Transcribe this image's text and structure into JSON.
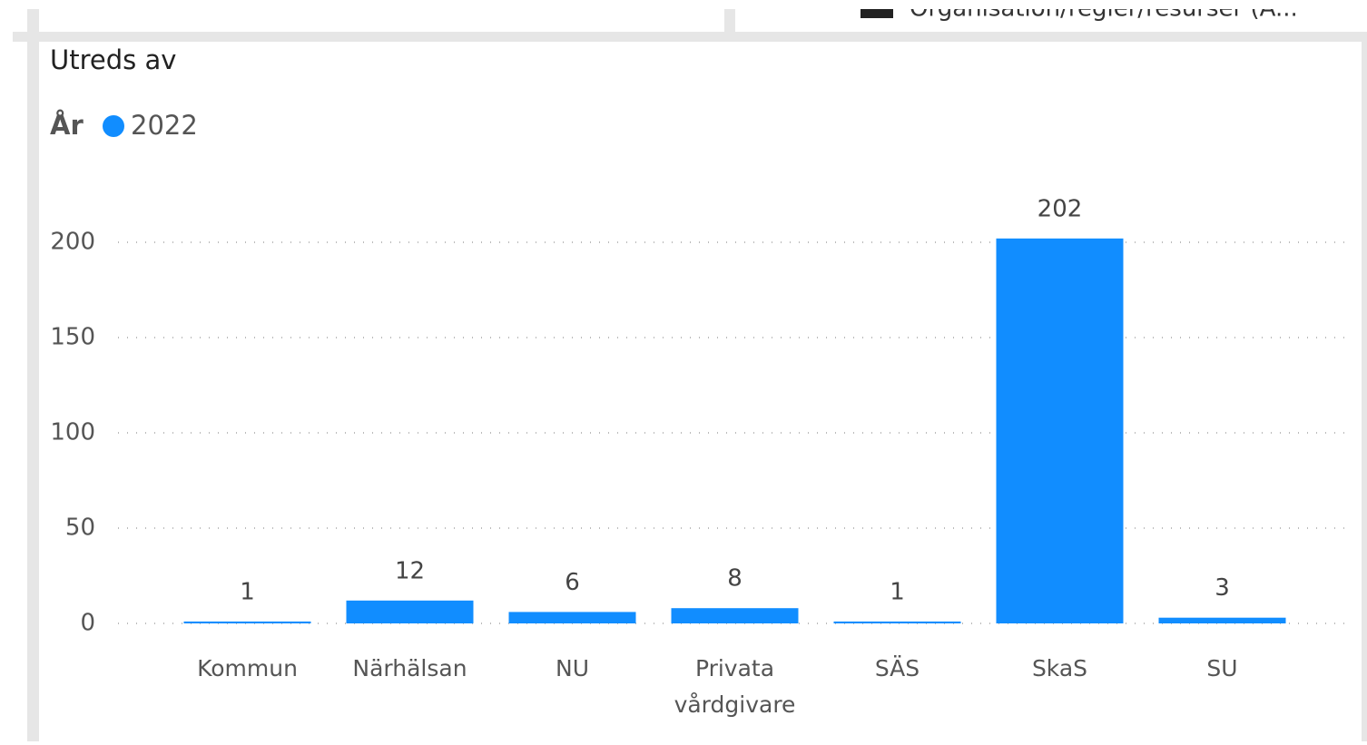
{
  "top_panel_legend": "Organisation/regler/resurser (A...",
  "chart_data": {
    "type": "bar",
    "title": "Utreds av",
    "legend_title": "År",
    "categories": [
      "Kommun",
      "Närhälsan",
      "NU",
      "Privata vårdgivare",
      "SÄS",
      "SkaS",
      "SU"
    ],
    "series": [
      {
        "name": "2022",
        "color": "#118dff",
        "values": [
          1,
          12,
          6,
          8,
          1,
          202,
          3
        ]
      }
    ],
    "ylim": [
      0,
      200
    ],
    "yticks": [
      0,
      50,
      100,
      150,
      200
    ],
    "grid": true
  }
}
